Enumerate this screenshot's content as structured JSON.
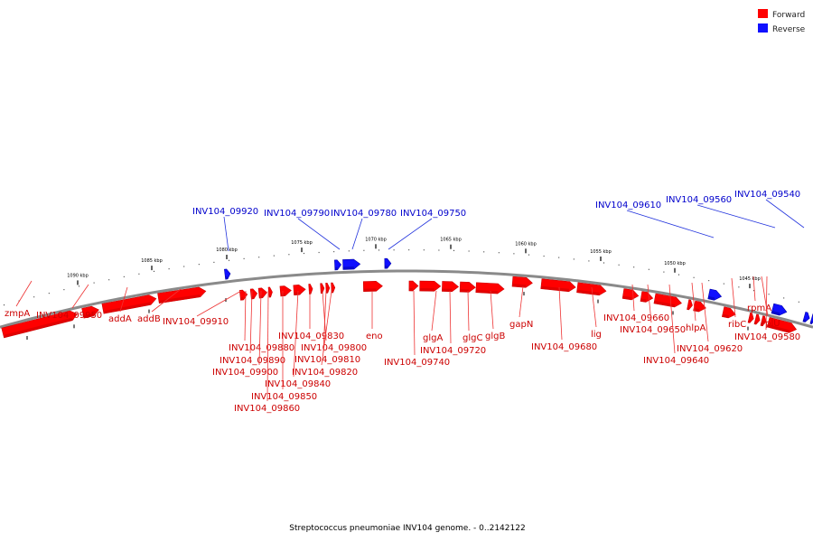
{
  "caption": "Streptococcus pneumoniae INV104 genome. - 0..2142122",
  "legend": {
    "forward_label": "Forward",
    "reverse_label": "Reverse",
    "forward_color": "#ff0000",
    "reverse_color": "#1010ff"
  },
  "colors": {
    "forward": "#ff0000",
    "forward_dark": "#cc0000",
    "reverse": "#1010ff",
    "reverse_dark": "#0000aa",
    "label_forward": "#cc0000",
    "label_reverse": "#0000cc"
  },
  "kbp_ticks": [
    "1090 kbp",
    "1085 kbp",
    "1080 kbp",
    "1075 kbp",
    "1070 kbp",
    "1065 kbp",
    "1060 kbp",
    "1055 kbp",
    "1050 kbp",
    "1045 kbp"
  ],
  "forward_labels": [
    "zmpA",
    "INV104_09950",
    "addA",
    "addB",
    "INV104_09910",
    "INV104_09880",
    "INV104_09890",
    "INV104_09900",
    "INV104_09830",
    "INV104_09800",
    "INV104_09810",
    "INV104_09820",
    "INV104_09840",
    "INV104_09850",
    "INV104_09860",
    "eno",
    "glgA",
    "INV104_09740",
    "INV104_09720",
    "glgC",
    "glgB",
    "gapN",
    "INV104_09680",
    "lig",
    "INV104_09660",
    "INV104_09650",
    "INV104_09640",
    "hlpA",
    "INV104_09620",
    "ribC",
    "rpmA",
    "rplU",
    "INV104_09580"
  ],
  "reverse_labels": [
    "INV104_09920",
    "INV104_09790",
    "INV104_09780",
    "INV104_09750",
    "INV104_09610",
    "INV104_09560",
    "INV104_09540"
  ]
}
